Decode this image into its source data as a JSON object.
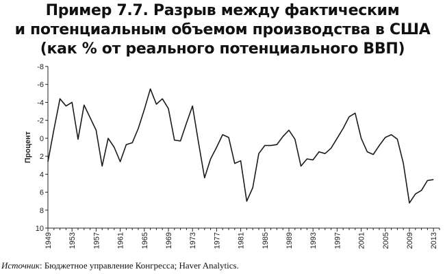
{
  "title_lines": [
    "Пример 7.7. Разрыв между фактическим",
    "и потенциальным объемом производства в США",
    "(как % от реального потенциального ВВП)"
  ],
  "source": {
    "label": "Источник",
    "text": ": Бюджетное управление Конгресса; Haver Analytics."
  },
  "chart_data": {
    "type": "line",
    "title": "Пример 7.7. Разрыв между фактическим и потенциальным объемом производства в США (как % от реального потенциального ВВП)",
    "xlabel": "",
    "ylabel": "Процент",
    "y_inverted": true,
    "ylim": [
      -8,
      10
    ],
    "xlim": [
      1949,
      2014
    ],
    "grid": false,
    "y_ticks": [
      -8,
      -6,
      -4,
      -2,
      0,
      2,
      4,
      6,
      8,
      10
    ],
    "x_ticks": [
      1949,
      1953,
      1957,
      1961,
      1965,
      1969,
      1973,
      1977,
      1981,
      1985,
      1989,
      1993,
      1997,
      2001,
      2005,
      2009,
      2013
    ],
    "x": [
      1949,
      1950,
      1951,
      1952,
      1953,
      1954,
      1955,
      1956,
      1957,
      1958,
      1959,
      1960,
      1961,
      1962,
      1963,
      1964,
      1965,
      1966,
      1967,
      1968,
      1969,
      1970,
      1971,
      1972,
      1973,
      1974,
      1975,
      1976,
      1977,
      1978,
      1979,
      1980,
      1981,
      1982,
      1983,
      1984,
      1985,
      1986,
      1987,
      1988,
      1989,
      1990,
      1991,
      1992,
      1993,
      1994,
      1995,
      1996,
      1997,
      1998,
      1999,
      2000,
      2001,
      2002,
      2003,
      2004,
      2005,
      2006,
      2007,
      2008,
      2009,
      2010,
      2011,
      2012,
      2013
    ],
    "values": [
      2.6,
      -1.0,
      -4.4,
      -3.6,
      -4.0,
      0.1,
      -3.7,
      -2.3,
      -0.9,
      3.1,
      0.0,
      1.0,
      2.6,
      0.7,
      0.5,
      -1.1,
      -3.2,
      -5.5,
      -3.8,
      -4.4,
      -3.3,
      0.2,
      0.3,
      -1.7,
      -3.6,
      0.5,
      4.4,
      2.3,
      1.0,
      -0.4,
      -0.1,
      2.8,
      2.5,
      7.0,
      5.5,
      1.7,
      0.8,
      0.8,
      0.7,
      -0.2,
      -0.9,
      0.1,
      3.1,
      2.3,
      2.4,
      1.5,
      1.7,
      1.1,
      0.0,
      -1.1,
      -2.4,
      -2.8,
      0.0,
      1.5,
      1.8,
      0.8,
      -0.1,
      -0.4,
      0.1,
      2.8,
      7.2,
      6.2,
      5.8,
      4.7,
      4.6
    ]
  }
}
